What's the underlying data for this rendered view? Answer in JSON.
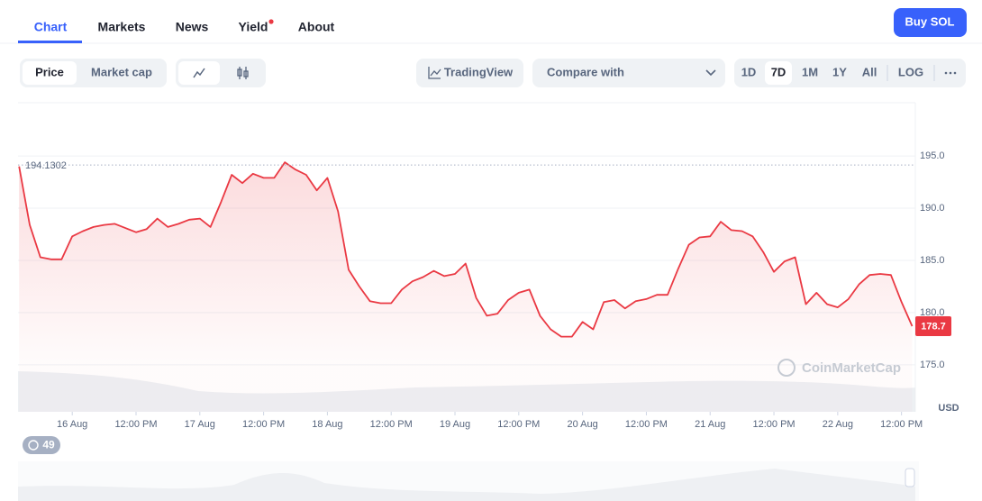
{
  "nav": {
    "tabs": [
      "Chart",
      "Markets",
      "News",
      "Yield",
      "About"
    ],
    "active": 0
  },
  "buy_button": "Buy SOL",
  "toolbar": {
    "metric_tabs": [
      "Price",
      "Market cap"
    ],
    "tradingview": "TradingView",
    "compare": "Compare with",
    "ranges": [
      "1D",
      "7D",
      "1M",
      "1Y",
      "All"
    ],
    "active_range": 1,
    "log": "LOG"
  },
  "badge": "49",
  "watermark": "CoinMarketCap",
  "chart_data": {
    "type": "line",
    "color": "#ea3943",
    "x": [
      -10,
      -8,
      -6,
      -4,
      -2,
      0,
      2,
      4,
      6,
      8,
      10,
      12,
      14,
      16,
      18,
      20,
      22,
      24,
      26,
      28,
      30,
      32,
      34,
      36,
      38,
      40,
      42,
      44,
      46,
      48,
      50,
      52,
      54,
      56,
      58,
      60,
      62,
      64,
      66,
      68,
      70,
      72,
      74,
      76,
      78,
      80,
      82,
      84,
      86,
      88,
      90,
      92,
      94,
      96,
      98,
      100,
      102,
      104,
      106,
      108,
      110,
      112,
      114,
      116,
      118,
      120,
      122,
      124,
      126,
      128,
      130,
      132,
      134,
      136,
      138,
      140,
      142,
      144,
      146,
      148,
      150,
      152,
      154,
      156,
      158
    ],
    "values": [
      194.0,
      188.4,
      185.3,
      185.1,
      185.1,
      187.3,
      187.8,
      188.2,
      188.4,
      188.5,
      188.1,
      187.7,
      188.0,
      189.0,
      188.2,
      188.5,
      188.9,
      189.0,
      188.2,
      190.6,
      193.2,
      192.4,
      193.3,
      192.9,
      192.9,
      194.4,
      193.7,
      193.2,
      191.7,
      192.9,
      189.7,
      184.1,
      182.5,
      181.1,
      180.9,
      180.9,
      182.2,
      183.0,
      183.4,
      184.0,
      183.5,
      183.7,
      184.7,
      181.4,
      179.7,
      179.9,
      181.2,
      181.9,
      182.2,
      179.7,
      178.4,
      177.7,
      177.7,
      179.1,
      178.4,
      181.0,
      181.2,
      180.4,
      181.1,
      181.3,
      181.7,
      181.7,
      184.2,
      186.5,
      187.2,
      187.3,
      188.7,
      187.9,
      187.8,
      187.3,
      185.8,
      183.9,
      184.9,
      185.3,
      180.8,
      181.9,
      180.8,
      180.5,
      181.3,
      182.7,
      183.6,
      183.7,
      183.6,
      181.0,
      178.7
    ],
    "xlim": [
      -10.2,
      158.6
    ],
    "ylim": [
      170.5,
      200.1
    ],
    "xticks": [
      {
        "value": 0,
        "label": "16 Aug"
      },
      {
        "value": 12,
        "label": "12:00 PM"
      },
      {
        "value": 24,
        "label": "17 Aug"
      },
      {
        "value": 36,
        "label": "12:00 PM"
      },
      {
        "value": 48,
        "label": "18 Aug"
      },
      {
        "value": 60,
        "label": "12:00 PM"
      },
      {
        "value": 72,
        "label": "19 Aug"
      },
      {
        "value": 84,
        "label": "12:00 PM"
      },
      {
        "value": 96,
        "label": "20 Aug"
      },
      {
        "value": 108,
        "label": "12:00 PM"
      },
      {
        "value": 120,
        "label": "21 Aug"
      },
      {
        "value": 132,
        "label": "12:00 PM"
      },
      {
        "value": 144,
        "label": "22 Aug"
      },
      {
        "value": 156,
        "label": "12:00 PM"
      }
    ],
    "yticks": [
      {
        "value": 175,
        "label": "175.0"
      },
      {
        "value": 180,
        "label": "180.0"
      },
      {
        "value": 185,
        "label": "185.0"
      },
      {
        "value": 190,
        "label": "190.0"
      },
      {
        "value": 195,
        "label": "195.0"
      }
    ],
    "y_label": "USD",
    "reference_line": 194.1302,
    "grid": true
  }
}
